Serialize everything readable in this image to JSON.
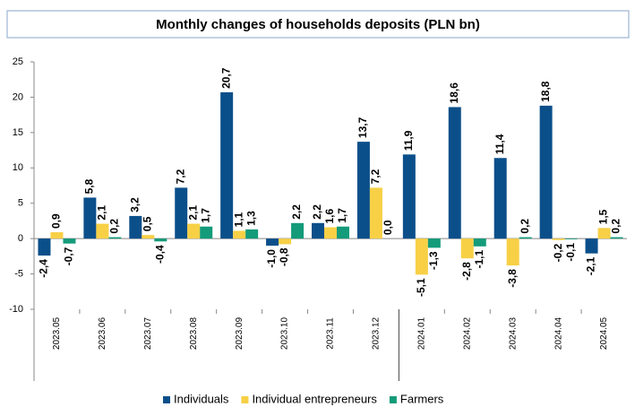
{
  "chart_data": {
    "type": "bar",
    "title": "Monthly changes of households deposits (PLN bn)",
    "categories": [
      "2023.05",
      "2023.06",
      "2023.07",
      "2023.08",
      "2023.09",
      "2023.10",
      "2023.11",
      "2023.12",
      "2024.01",
      "2024.02",
      "2024.03",
      "2024.04",
      "2024.05"
    ],
    "series": [
      {
        "name": "Individuals",
        "color": "#0b4f8a",
        "values": [
          -2.4,
          5.8,
          3.2,
          7.2,
          20.7,
          -1.0,
          2.2,
          13.7,
          11.9,
          18.6,
          11.4,
          18.8,
          -2.1
        ],
        "value_labels": [
          "-2,4",
          "5,8",
          "3,2",
          "7,2",
          "20,7",
          "-1,0",
          "2,2",
          "13,7",
          "11,9",
          "18,6",
          "11,4",
          "18,8",
          "-2,1"
        ]
      },
      {
        "name": "Individual entrepreneurs",
        "color": "#f7d046",
        "values": [
          0.9,
          2.1,
          0.5,
          2.1,
          1.1,
          -0.8,
          1.6,
          7.2,
          -5.1,
          -2.8,
          -3.8,
          -0.2,
          1.5
        ],
        "value_labels": [
          "0,9",
          "2,1",
          "0,5",
          "2,1",
          "1,1",
          "-0,8",
          "1,6",
          "7,2",
          "-5,1",
          "-2,8",
          "-3,8",
          "-0,2",
          "1,5"
        ]
      },
      {
        "name": "Farmers",
        "color": "#139b7a",
        "values": [
          -0.7,
          0.2,
          -0.4,
          1.7,
          1.3,
          2.2,
          1.7,
          0.0,
          -1.3,
          -1.1,
          0.2,
          -0.1,
          0.2
        ],
        "value_labels": [
          "-0,7",
          "0,2",
          "-0,4",
          "1,7",
          "1,3",
          "2,2",
          "1,7",
          "0,0",
          "-1,3",
          "-1,1",
          "0,2",
          "-0,1",
          "0,2"
        ]
      }
    ],
    "ylim": [
      -10,
      25
    ],
    "yticks": [
      -10,
      -5,
      0,
      5,
      10,
      15,
      20,
      25
    ],
    "grid": false,
    "legend": "bottom"
  }
}
